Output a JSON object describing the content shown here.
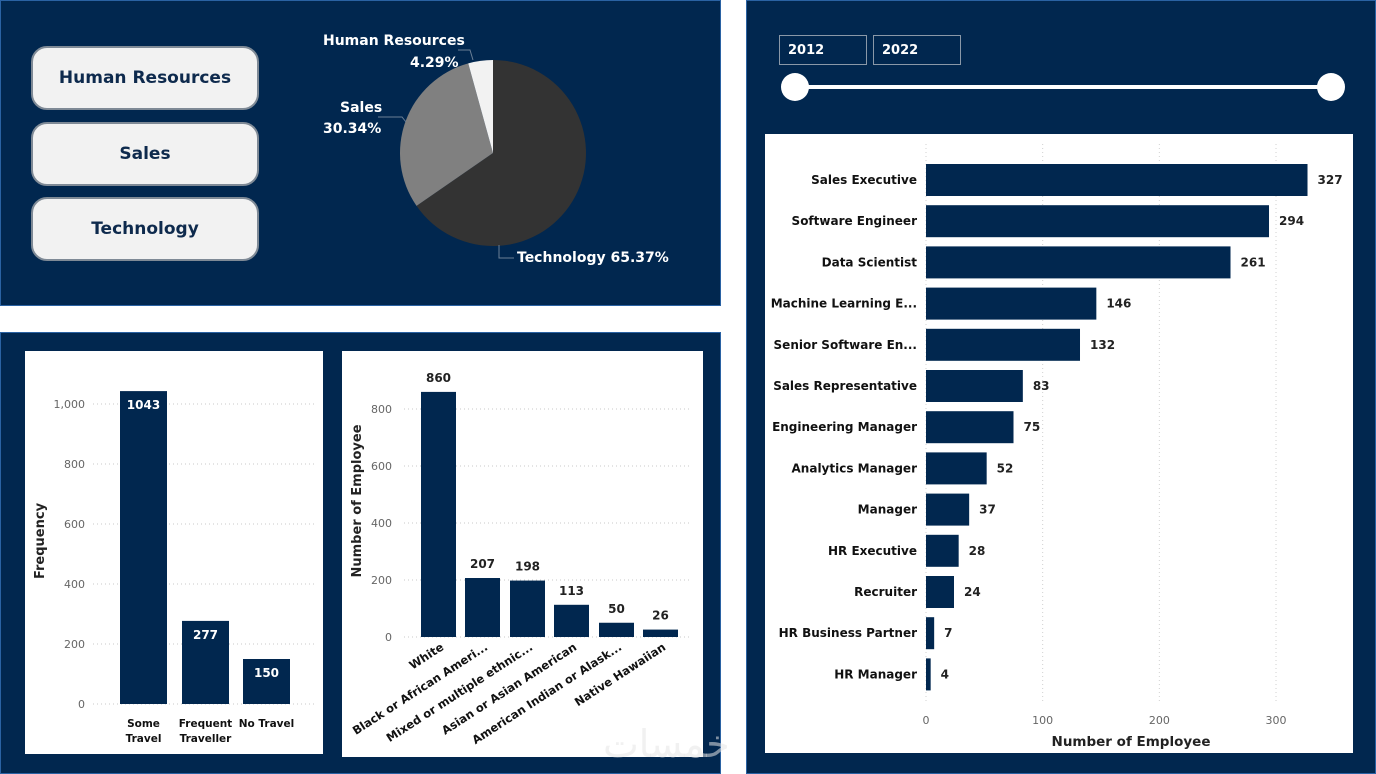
{
  "filters": {
    "department_buttons": [
      "Human Resources",
      "Sales",
      "Technology"
    ],
    "year_range": {
      "start": "2012",
      "end": "2022"
    }
  },
  "colors": {
    "navy": "#01274f",
    "bar": "#01274f",
    "pie_technology": "#333333",
    "pie_sales": "#808080",
    "pie_hr": "#f2f2f2"
  },
  "watermark": "خمسات",
  "chart_data": [
    {
      "type": "pie",
      "title": "",
      "slices": [
        {
          "label": "Technology",
          "value": 65.37,
          "display": "Technology 65.37%"
        },
        {
          "label": "Sales",
          "value": 30.34,
          "display": "30.34%"
        },
        {
          "label": "Human Resources",
          "value": 4.29,
          "display": "4.29%"
        }
      ]
    },
    {
      "type": "bar",
      "orientation": "vertical",
      "categories": [
        "Some Travel",
        "Frequent Traveller",
        "No Travel"
      ],
      "category_lines": [
        [
          "Some",
          "Travel"
        ],
        [
          "Frequent",
          "Traveller"
        ],
        [
          "No Travel"
        ]
      ],
      "values": [
        1043,
        277,
        150
      ],
      "ylabel": "Frequency",
      "xlabel": "",
      "ylim": [
        0,
        1000
      ],
      "yticks": [
        0,
        200,
        400,
        600,
        800,
        1000
      ],
      "ytick_labels": [
        "0",
        "200",
        "400",
        "600",
        "800",
        "1,000"
      ],
      "grid": true,
      "data_labels": "inside-top"
    },
    {
      "type": "bar",
      "orientation": "vertical",
      "categories": [
        "White",
        "Black or African Ameri...",
        "Mixed or multiple ethnic...",
        "Asian or Asian American",
        "American Indian or Alask...",
        "Native Hawaiian"
      ],
      "values": [
        860,
        207,
        198,
        113,
        50,
        26
      ],
      "ylabel": "Number of Employee",
      "xlabel": "",
      "ylim": [
        0,
        800
      ],
      "yticks": [
        0,
        200,
        400,
        600,
        800
      ],
      "ytick_labels": [
        "0",
        "200",
        "400",
        "600",
        "800"
      ],
      "grid": true,
      "data_labels": "outside-top"
    },
    {
      "type": "bar",
      "orientation": "horizontal",
      "categories": [
        "Sales Executive",
        "Software Engineer",
        "Data Scientist",
        "Machine Learning E...",
        "Senior Software En...",
        "Sales Representative",
        "Engineering Manager",
        "Analytics Manager",
        "Manager",
        "HR Executive",
        "Recruiter",
        "HR Business Partner",
        "HR Manager"
      ],
      "values": [
        327,
        294,
        261,
        146,
        132,
        83,
        75,
        52,
        37,
        28,
        24,
        7,
        4
      ],
      "xlabel": "Number of Employee",
      "ylabel": "",
      "xlim": [
        0,
        300
      ],
      "xticks": [
        0,
        100,
        200,
        300
      ],
      "xtick_labels": [
        "0",
        "100",
        "200",
        "300"
      ],
      "grid": true,
      "data_labels": "outside-end"
    }
  ]
}
